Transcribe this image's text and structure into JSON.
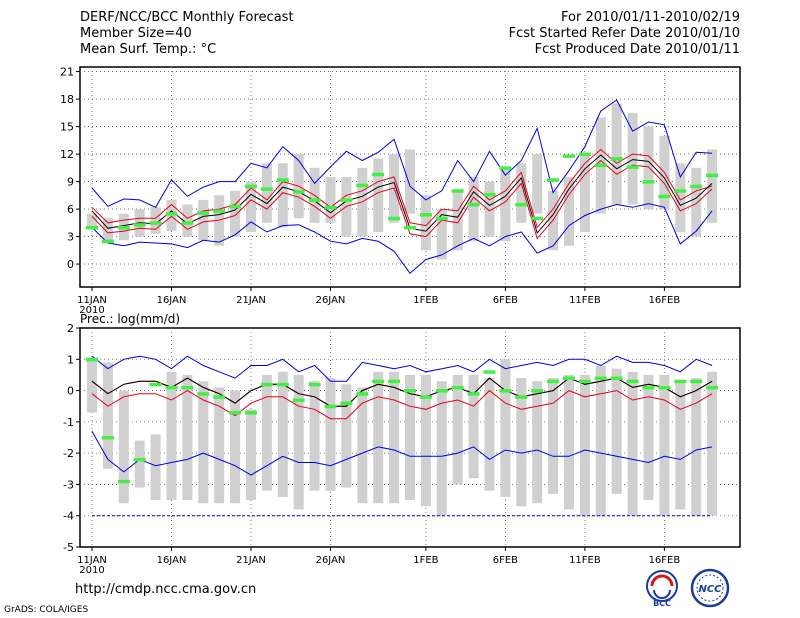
{
  "header": {
    "title": "DERF/NCC/BCC Monthly Forecast",
    "member_size": "Member Size=40",
    "variable": "Mean Surf. Temp.: °C",
    "period": "For 2010/01/11-2010/02/19",
    "started": "Fcst Started Refer Date 2010/01/10",
    "produced": "Fcst Produced Date 2010/01/11"
  },
  "footer": {
    "url": "http://cmdp.ncc.cma.gov.cn",
    "grads": "GrADS: COLA/IGES"
  },
  "logos": {
    "bcc": "BCC",
    "ncc": "NCC"
  },
  "colors": {
    "ensemble_box": "#d0d0d0",
    "mean_line": "#000000",
    "stddev_lines": "#e8001c",
    "extreme_lines": "#0000e0",
    "observed_marks": "#44ee44",
    "grid": "#606060"
  },
  "chart_data": [
    {
      "type": "line",
      "title": "Mean Surf. Temp.: °C",
      "xlabel": "",
      "ylabel": "",
      "ylim": [
        -2.5,
        21.5
      ],
      "yticks": [
        0,
        3,
        6,
        9,
        12,
        15,
        18,
        21
      ],
      "xlim": [
        0,
        39
      ],
      "xticks": [
        {
          "day": 0,
          "label": "11JAN",
          "sub": "2010"
        },
        {
          "day": 5,
          "label": "16JAN"
        },
        {
          "day": 10,
          "label": "21JAN"
        },
        {
          "day": 15,
          "label": "26JAN"
        },
        {
          "day": 21,
          "label": "1FEB"
        },
        {
          "day": 26,
          "label": "6FEB"
        },
        {
          "day": 31,
          "label": "11FEB"
        },
        {
          "day": 36,
          "label": "16FEB"
        }
      ],
      "box_low": [
        4.0,
        2.3,
        2.6,
        3.0,
        3.3,
        3.6,
        3.0,
        2.6,
        2.0,
        3.0,
        3.5,
        4.5,
        4.0,
        5.0,
        4.5,
        4.5,
        3.0,
        3.0,
        3.5,
        4.5,
        5.5,
        1.5,
        0.5,
        1.5,
        2.5,
        3.0,
        2.5,
        4.5,
        5.5,
        1.5,
        2.0,
        3.5,
        5.5,
        6.5,
        6.5,
        6.0,
        6.0,
        3.5,
        3.0,
        4.5
      ],
      "box_high": [
        5.5,
        5.0,
        5.5,
        6.0,
        6.2,
        7.0,
        6.5,
        7.0,
        7.5,
        8.0,
        9.0,
        11.0,
        11.0,
        12.0,
        10.5,
        9.5,
        9.5,
        10.5,
        11.5,
        12.0,
        12.5,
        7.5,
        6.0,
        8.0,
        9.5,
        9.0,
        10.5,
        11.0,
        12.0,
        8.0,
        9.5,
        12.0,
        16.0,
        17.5,
        16.5,
        15.0,
        14.0,
        11.0,
        10.5,
        12.5
      ],
      "series": [
        {
          "name": "Max",
          "values": [
            8.3,
            6.3,
            7.1,
            7.0,
            6.2,
            9.2,
            7.4,
            8.4,
            9.0,
            9.0,
            11.0,
            10.5,
            12.8,
            11.3,
            8.8,
            10.6,
            12.3,
            11.3,
            12.2,
            13.6,
            8.5,
            7.0,
            8.0,
            11.3,
            9.0,
            12.3,
            9.7,
            11.3,
            14.8,
            7.8,
            10.2,
            12.8,
            16.7,
            17.9,
            14.5,
            15.5,
            15.2,
            9.5,
            12.2,
            12.1
          ]
        },
        {
          "name": "Mean+SD",
          "values": [
            6.2,
            4.5,
            4.8,
            5.0,
            5.0,
            6.5,
            5.0,
            5.8,
            6.0,
            6.5,
            8.3,
            7.0,
            9.0,
            8.5,
            7.5,
            6.2,
            7.5,
            8.0,
            9.0,
            9.5,
            4.5,
            4.2,
            6.0,
            5.8,
            8.5,
            7.0,
            8.0,
            10.0,
            4.0,
            6.0,
            8.8,
            11.0,
            12.5,
            11.0,
            12.0,
            11.8,
            10.0,
            7.0,
            8.0,
            8.5
          ]
        },
        {
          "name": "Mean",
          "values": [
            5.8,
            3.9,
            4.2,
            4.5,
            4.4,
            5.8,
            4.4,
            5.2,
            5.4,
            5.9,
            7.6,
            6.6,
            8.4,
            7.9,
            6.9,
            5.6,
            6.9,
            7.4,
            8.4,
            8.9,
            3.9,
            3.6,
            5.4,
            5.1,
            7.9,
            6.4,
            7.4,
            9.4,
            3.4,
            5.4,
            8.2,
            10.4,
            11.9,
            10.4,
            11.4,
            11.2,
            9.4,
            6.4,
            7.2,
            8.8
          ]
        },
        {
          "name": "Mean-SD",
          "values": [
            5.2,
            3.4,
            3.6,
            3.9,
            3.8,
            5.2,
            3.8,
            4.6,
            4.8,
            5.3,
            7.0,
            6.0,
            7.8,
            7.3,
            6.3,
            5.0,
            6.3,
            6.8,
            7.8,
            8.3,
            3.3,
            3.0,
            4.8,
            4.5,
            7.3,
            5.8,
            6.8,
            8.8,
            2.8,
            4.8,
            7.6,
            9.8,
            11.3,
            9.8,
            10.8,
            10.6,
            8.8,
            5.8,
            6.6,
            8.2
          ]
        },
        {
          "name": "Min",
          "values": [
            4.0,
            2.3,
            2.0,
            2.4,
            2.3,
            2.2,
            1.8,
            2.6,
            2.4,
            3.2,
            4.6,
            3.5,
            4.2,
            4.3,
            3.5,
            2.5,
            2.2,
            2.8,
            2.5,
            1.4,
            -1.0,
            0.5,
            1.0,
            2.0,
            2.8,
            2.0,
            3.0,
            3.5,
            1.2,
            2.0,
            4.2,
            5.3,
            6.0,
            6.5,
            6.2,
            6.6,
            6.2,
            2.2,
            3.6,
            5.8
          ]
        }
      ],
      "observed": [
        4.0,
        2.5,
        4.0,
        4.3,
        4.5,
        5.5,
        4.5,
        5.6,
        5.8,
        6.3,
        8.5,
        8.2,
        9.2,
        7.9,
        7.0,
        6.2,
        7.0,
        8.6,
        9.8,
        5.0,
        4.0,
        5.4,
        5.0,
        8.0,
        6.5,
        7.6,
        10.5,
        6.5,
        5.0,
        9.2,
        11.8,
        12.0,
        10.8,
        11.5,
        10.6,
        9.0,
        7.4,
        8.0,
        8.5,
        9.7
      ]
    },
    {
      "type": "line",
      "title": "Prec.: log(mm/d)",
      "xlabel": "",
      "ylabel": "",
      "ylim": [
        -5,
        2
      ],
      "yticks": [
        -5,
        -4,
        -3,
        -2,
        -1,
        0,
        1,
        2
      ],
      "xlim": [
        0,
        39
      ],
      "xticks": [
        {
          "day": 0,
          "label": "11JAN",
          "sub": "2010"
        },
        {
          "day": 5,
          "label": "16JAN"
        },
        {
          "day": 10,
          "label": "21JAN"
        },
        {
          "day": 15,
          "label": "26JAN"
        },
        {
          "day": 21,
          "label": "1FEB"
        },
        {
          "day": 26,
          "label": "6FEB"
        },
        {
          "day": 31,
          "label": "11FEB"
        },
        {
          "day": 36,
          "label": "16FEB"
        }
      ],
      "box_low": [
        -0.7,
        -2.5,
        -3.6,
        -3.1,
        -3.5,
        -3.5,
        -3.5,
        -3.6,
        -3.6,
        -3.6,
        -3.5,
        -3.2,
        -3.4,
        -3.8,
        -3.2,
        -3.2,
        -3.1,
        -3.6,
        -3.6,
        -3.6,
        -3.5,
        -3.7,
        -4.0,
        -3.0,
        -2.8,
        -3.2,
        -3.4,
        -3.7,
        -3.6,
        -3.3,
        -3.8,
        -4.0,
        -4.0,
        -3.3,
        -4.0,
        -3.5,
        -4.0,
        -3.8,
        -4.0,
        -4.0
      ],
      "box_high": [
        1.0,
        0.9,
        0.0,
        -1.6,
        -1.4,
        0.6,
        0.5,
        0.3,
        0.1,
        0.0,
        -0.6,
        0.5,
        0.6,
        0.5,
        0.3,
        0.4,
        0.2,
        0.1,
        0.6,
        0.6,
        0.5,
        0.5,
        0.3,
        0.5,
        0.5,
        0.4,
        1.0,
        0.4,
        0.3,
        0.4,
        0.5,
        0.5,
        0.8,
        0.7,
        0.6,
        0.5,
        0.5,
        0.3,
        0.4,
        0.6
      ],
      "series": [
        {
          "name": "Max",
          "values": [
            1.1,
            0.7,
            1.0,
            1.1,
            1.0,
            0.7,
            1.1,
            0.8,
            0.6,
            0.4,
            0.8,
            0.8,
            1.0,
            0.6,
            0.8,
            0.3,
            0.3,
            0.9,
            0.8,
            0.7,
            0.8,
            0.6,
            0.7,
            0.8,
            0.6,
            1.0,
            0.7,
            0.8,
            0.9,
            0.8,
            1.0,
            1.0,
            0.8,
            1.1,
            0.9,
            0.9,
            0.8,
            0.6,
            1.0,
            0.8
          ]
        },
        {
          "name": "Mean+SD",
          "values": [
            0.3,
            -0.1,
            0.2,
            0.3,
            0.3,
            0.1,
            0.4,
            0.1,
            -0.1,
            -0.4,
            0.0,
            0.2,
            0.2,
            -0.1,
            -0.2,
            -0.5,
            -0.5,
            0.0,
            0.2,
            0.1,
            -0.1,
            -0.2,
            0.0,
            0.1,
            -0.1,
            0.4,
            0.0,
            -0.2,
            -0.1,
            0.0,
            0.4,
            0.2,
            0.3,
            0.4,
            0.1,
            0.2,
            0.1,
            -0.2,
            0.0,
            0.3
          ]
        },
        {
          "name": "Mean",
          "values": [
            0.3,
            -0.1,
            0.2,
            0.3,
            0.3,
            0.1,
            0.4,
            0.1,
            -0.1,
            -0.4,
            0.0,
            0.2,
            0.2,
            -0.1,
            -0.2,
            -0.5,
            -0.5,
            0.0,
            0.2,
            0.1,
            -0.1,
            -0.2,
            0.0,
            0.1,
            -0.1,
            0.4,
            0.0,
            -0.2,
            -0.1,
            0.0,
            0.4,
            0.2,
            0.3,
            0.4,
            0.1,
            0.2,
            0.1,
            -0.2,
            0.0,
            0.3
          ]
        },
        {
          "name": "Mean-SD",
          "values": [
            -0.1,
            -0.5,
            -0.2,
            -0.1,
            -0.1,
            -0.3,
            0.0,
            -0.3,
            -0.5,
            -0.8,
            -0.4,
            -0.2,
            -0.2,
            -0.5,
            -0.6,
            -0.9,
            -0.9,
            -0.4,
            -0.2,
            -0.3,
            -0.5,
            -0.6,
            -0.4,
            -0.3,
            -0.5,
            0.0,
            -0.4,
            -0.6,
            -0.5,
            -0.4,
            0.0,
            -0.2,
            -0.1,
            0.0,
            -0.3,
            -0.2,
            -0.3,
            -0.6,
            -0.4,
            -0.1
          ]
        },
        {
          "name": "Min",
          "values": [
            -1.3,
            -2.2,
            -2.6,
            -2.2,
            -2.4,
            -2.3,
            -2.2,
            -2.0,
            -2.2,
            -2.4,
            -2.7,
            -2.4,
            -2.1,
            -2.3,
            -2.3,
            -2.4,
            -2.2,
            -2.0,
            -1.8,
            -1.9,
            -2.1,
            -2.1,
            -2.1,
            -2.0,
            -1.8,
            -2.2,
            -1.9,
            -2.0,
            -1.9,
            -2.1,
            -2.1,
            -1.9,
            -2.0,
            -2.1,
            -2.2,
            -2.3,
            -2.1,
            -2.2,
            -1.9,
            -1.8
          ]
        },
        {
          "name": "Floor",
          "values": [
            -4.0,
            -4.0,
            -4.0,
            -4.0,
            -4.0,
            -4.0,
            -4.0,
            -4.0,
            -4.0,
            -4.0,
            -4.0,
            -4.0,
            -4.0,
            -4.0,
            -4.0,
            -4.0,
            -4.0,
            -4.0,
            -4.0,
            -4.0,
            -4.0,
            -4.0,
            -4.0,
            -4.0,
            -4.0,
            -4.0,
            -4.0,
            -4.0,
            -4.0,
            -4.0,
            -4.0,
            -4.0,
            -4.0,
            -4.0,
            -4.0,
            -4.0,
            -4.0,
            -4.0,
            -4.0,
            -4.0
          ]
        }
      ],
      "observed": [
        1.0,
        -1.5,
        -2.9,
        -2.2,
        0.2,
        0.1,
        0.1,
        -0.1,
        -0.2,
        -0.7,
        -0.7,
        0.2,
        0.2,
        -0.3,
        0.2,
        -0.5,
        -0.4,
        -0.1,
        0.3,
        0.3,
        0.0,
        -0.2,
        0.0,
        0.1,
        -0.1,
        0.6,
        0.0,
        -0.2,
        0.0,
        0.3,
        0.4,
        0.3,
        0.4,
        0.4,
        0.3,
        0.1,
        0.1,
        0.3,
        0.3,
        0.1
      ]
    }
  ]
}
